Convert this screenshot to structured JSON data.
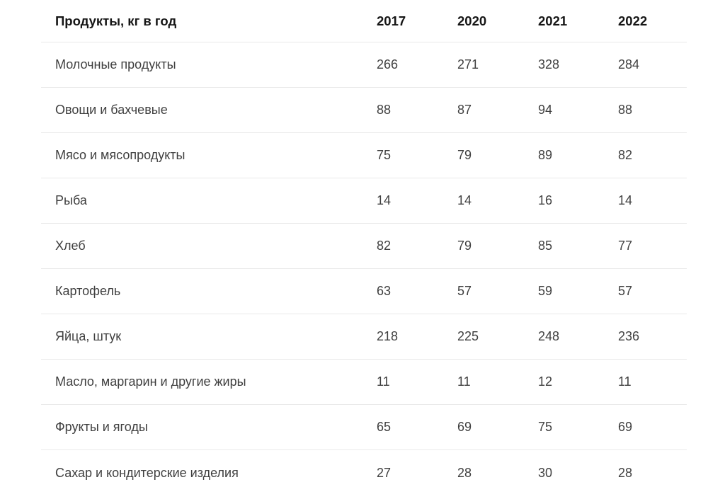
{
  "table": {
    "header": {
      "label": "Продукты, кг в год",
      "years": [
        "2017",
        "2020",
        "2021",
        "2022"
      ]
    },
    "rows": [
      {
        "label": "Молочные продукты",
        "values": [
          "266",
          "271",
          "328",
          "284"
        ]
      },
      {
        "label": "Овощи и бахчевые",
        "values": [
          "88",
          "87",
          "94",
          "88"
        ]
      },
      {
        "label": "Мясо и мясопродукты",
        "values": [
          "75",
          "79",
          "89",
          "82"
        ]
      },
      {
        "label": "Рыба",
        "values": [
          "14",
          "14",
          "16",
          "14"
        ]
      },
      {
        "label": "Хлеб",
        "values": [
          "82",
          "79",
          "85",
          "77"
        ]
      },
      {
        "label": "Картофель",
        "values": [
          "63",
          "57",
          "59",
          "57"
        ]
      },
      {
        "label": "Яйца, штук",
        "values": [
          "218",
          "225",
          "248",
          "236"
        ]
      },
      {
        "label": "Масло, маргарин и другие жиры",
        "values": [
          "11",
          "11",
          "12",
          "11"
        ]
      },
      {
        "label": "Фрукты и ягоды",
        "values": [
          "65",
          "69",
          "75",
          "69"
        ]
      },
      {
        "label": "Сахар и кондитерские изделия",
        "values": [
          "27",
          "28",
          "30",
          "28"
        ]
      }
    ]
  },
  "chart_data": {
    "type": "table",
    "title": "Продукты, кг в год",
    "columns": [
      "Продукты, кг в год",
      "2017",
      "2020",
      "2021",
      "2022"
    ],
    "rows": [
      [
        "Молочные продукты",
        266,
        271,
        328,
        284
      ],
      [
        "Овощи и бахчевые",
        88,
        87,
        94,
        88
      ],
      [
        "Мясо и мясопродукты",
        75,
        79,
        89,
        82
      ],
      [
        "Рыба",
        14,
        14,
        16,
        14
      ],
      [
        "Хлеб",
        82,
        79,
        85,
        77
      ],
      [
        "Картофель",
        63,
        57,
        59,
        57
      ],
      [
        "Яйца, штук",
        218,
        225,
        248,
        236
      ],
      [
        "Масло, маргарин и другие жиры",
        11,
        11,
        12,
        11
      ],
      [
        "Фрукты и ягоды",
        65,
        69,
        75,
        69
      ],
      [
        "Сахар и кондитерские изделия",
        27,
        28,
        30,
        28
      ]
    ],
    "colors": {
      "header_text": "#161616",
      "body_text": "#3f3f3f",
      "separator": "#e9e9e9",
      "background": "#ffffff"
    }
  }
}
